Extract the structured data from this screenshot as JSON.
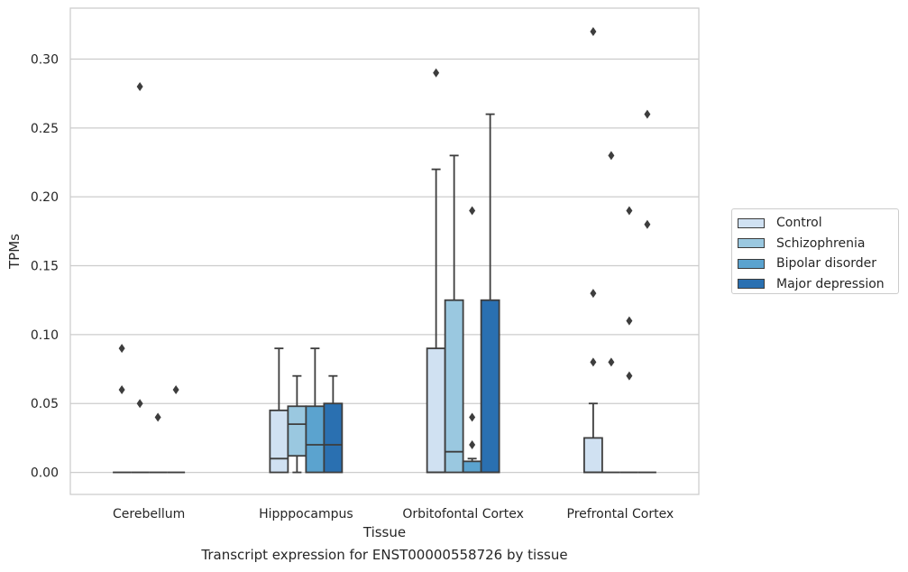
{
  "caption": "Transcript expression for ENST00000558726 by tissue",
  "chart_data": {
    "type": "box",
    "xlabel": "Tissue",
    "ylabel": "TPMs",
    "ylim": [
      -0.016,
      0.337
    ],
    "yticks": [
      0.0,
      0.05,
      0.1,
      0.15,
      0.2,
      0.25,
      0.3
    ],
    "ytick_labels": [
      "0.00",
      "0.05",
      "0.10",
      "0.15",
      "0.20",
      "0.25",
      "0.30"
    ],
    "grid": "horizontal",
    "legend_position": "right",
    "categories": [
      "Cerebellum",
      "Hipppocampus",
      "Orbitofontal Cortex",
      "Prefrontal Cortex"
    ],
    "series": [
      {
        "name": "Control",
        "color": "#d0e1f2",
        "boxes": [
          {
            "q1": 0.0,
            "median": 0.0,
            "q3": 0.0,
            "whislo": 0.0,
            "whishi": 0.0,
            "fliers": [
              0.09,
              0.06
            ]
          },
          {
            "q1": 0.0,
            "median": 0.01,
            "q3": 0.045,
            "whislo": 0.0,
            "whishi": 0.09,
            "fliers": []
          },
          {
            "q1": 0.0,
            "median": 0.0,
            "q3": 0.09,
            "whislo": 0.0,
            "whishi": 0.22,
            "fliers": [
              0.29
            ]
          },
          {
            "q1": 0.0,
            "median": 0.0,
            "q3": 0.025,
            "whislo": 0.0,
            "whishi": 0.05,
            "fliers": [
              0.32,
              0.13,
              0.08
            ]
          }
        ]
      },
      {
        "name": "Schizophrenia",
        "color": "#9ac8e0",
        "boxes": [
          {
            "q1": 0.0,
            "median": 0.0,
            "q3": 0.0,
            "whislo": 0.0,
            "whishi": 0.0,
            "fliers": [
              0.28,
              0.05
            ]
          },
          {
            "q1": 0.012,
            "median": 0.035,
            "q3": 0.048,
            "whislo": 0.0,
            "whishi": 0.07,
            "fliers": []
          },
          {
            "q1": 0.0,
            "median": 0.015,
            "q3": 0.125,
            "whislo": 0.0,
            "whishi": 0.23,
            "fliers": []
          },
          {
            "q1": 0.0,
            "median": 0.0,
            "q3": 0.0,
            "whislo": 0.0,
            "whishi": 0.0,
            "fliers": [
              0.23,
              0.08
            ]
          }
        ]
      },
      {
        "name": "Bipolar disorder",
        "color": "#5ba3cf",
        "boxes": [
          {
            "q1": 0.0,
            "median": 0.0,
            "q3": 0.0,
            "whislo": 0.0,
            "whishi": 0.0,
            "fliers": [
              0.04
            ]
          },
          {
            "q1": 0.0,
            "median": 0.02,
            "q3": 0.048,
            "whislo": 0.0,
            "whishi": 0.09,
            "fliers": []
          },
          {
            "q1": 0.0,
            "median": 0.0,
            "q3": 0.008,
            "whislo": 0.0,
            "whishi": 0.01,
            "fliers": [
              0.19,
              0.04,
              0.02
            ]
          },
          {
            "q1": 0.0,
            "median": 0.0,
            "q3": 0.0,
            "whislo": 0.0,
            "whishi": 0.0,
            "fliers": [
              0.19,
              0.11,
              0.07
            ]
          }
        ]
      },
      {
        "name": "Major depression",
        "color": "#2a70b1",
        "boxes": [
          {
            "q1": 0.0,
            "median": 0.0,
            "q3": 0.0,
            "whislo": 0.0,
            "whishi": 0.0,
            "fliers": [
              0.06
            ]
          },
          {
            "q1": 0.0,
            "median": 0.02,
            "q3": 0.05,
            "whislo": 0.0,
            "whishi": 0.07,
            "fliers": []
          },
          {
            "q1": 0.0,
            "median": 0.0,
            "q3": 0.125,
            "whislo": 0.0,
            "whishi": 0.26,
            "fliers": []
          },
          {
            "q1": 0.0,
            "median": 0.0,
            "q3": 0.0,
            "whislo": 0.0,
            "whishi": 0.0,
            "fliers": [
              0.26,
              0.18
            ]
          }
        ]
      }
    ]
  }
}
